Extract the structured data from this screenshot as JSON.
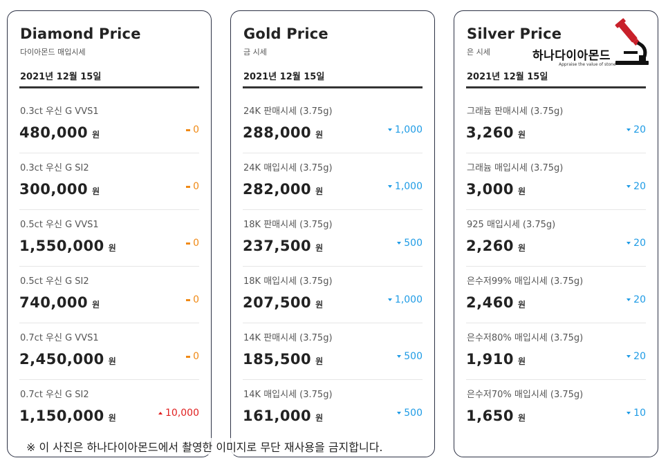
{
  "cards": [
    {
      "title": "Diamond Price",
      "subtitle": "다이아몬드 매입시세",
      "date": "2021년 12월 15일",
      "rows": [
        {
          "label": "0.3ct 우신 G VVS1",
          "price": "480,000",
          "unit": "원",
          "change": "0",
          "direction": "flat"
        },
        {
          "label": "0.3ct 우신 G SI2",
          "price": "300,000",
          "unit": "원",
          "change": "0",
          "direction": "flat"
        },
        {
          "label": "0.5ct 우신 G VVS1",
          "price": "1,550,000",
          "unit": "원",
          "change": "0",
          "direction": "flat"
        },
        {
          "label": "0.5ct 우신 G SI2",
          "price": "740,000",
          "unit": "원",
          "change": "0",
          "direction": "flat"
        },
        {
          "label": "0.7ct 우신 G VVS1",
          "price": "2,450,000",
          "unit": "원",
          "change": "0",
          "direction": "flat"
        },
        {
          "label": "0.7ct 우신 G SI2",
          "price": "1,150,000",
          "unit": "원",
          "change": "10,000",
          "direction": "up"
        }
      ]
    },
    {
      "title": "Gold Price",
      "subtitle": "금 시세",
      "date": "2021년 12월 15일",
      "rows": [
        {
          "label": "24K 판매시세 (3.75g)",
          "price": "288,000",
          "unit": "원",
          "change": "1,000",
          "direction": "down"
        },
        {
          "label": "24K 매입시세 (3.75g)",
          "price": "282,000",
          "unit": "원",
          "change": "1,000",
          "direction": "down"
        },
        {
          "label": "18K 판매시세 (3.75g)",
          "price": "237,500",
          "unit": "원",
          "change": "500",
          "direction": "down"
        },
        {
          "label": "18K 매입시세 (3.75g)",
          "price": "207,500",
          "unit": "원",
          "change": "1,000",
          "direction": "down"
        },
        {
          "label": "14K 판매시세 (3.75g)",
          "price": "185,500",
          "unit": "원",
          "change": "500",
          "direction": "down"
        },
        {
          "label": "14K 매입시세 (3.75g)",
          "price": "161,000",
          "unit": "원",
          "change": "500",
          "direction": "down"
        }
      ]
    },
    {
      "title": "Silver Price",
      "subtitle": "은 시세",
      "date": "2021년 12월 15일",
      "rows": [
        {
          "label": "그래늄 판매시세 (3.75g)",
          "price": "3,260",
          "unit": "원",
          "change": "20",
          "direction": "down"
        },
        {
          "label": "그래늄 매입시세 (3.75g)",
          "price": "3,000",
          "unit": "원",
          "change": "20",
          "direction": "down"
        },
        {
          "label": "925 매입시세 (3.75g)",
          "price": "2,260",
          "unit": "원",
          "change": "20",
          "direction": "down"
        },
        {
          "label": "은수저99% 매입시세 (3.75g)",
          "price": "2,460",
          "unit": "원",
          "change": "20",
          "direction": "down"
        },
        {
          "label": "은수저80% 매입시세 (3.75g)",
          "price": "1,910",
          "unit": "원",
          "change": "20",
          "direction": "down"
        },
        {
          "label": "은수저70% 매입시세 (3.75g)",
          "price": "1,650",
          "unit": "원",
          "change": "10",
          "direction": "down"
        }
      ]
    }
  ],
  "logo": {
    "name": "하나다이아몬드",
    "tagline": "Appraise the value of stone",
    "icon": "microscope-icon"
  },
  "watermark": "※ 이 사진은 하나다이아몬드에서 촬영한 이미지로 무단 재사용을 금지합니다.",
  "colors": {
    "flat": "#f08a16",
    "down": "#1e9be5",
    "up": "#e02020",
    "card_border": "#2b3043",
    "logo_red": "#c8202a"
  }
}
